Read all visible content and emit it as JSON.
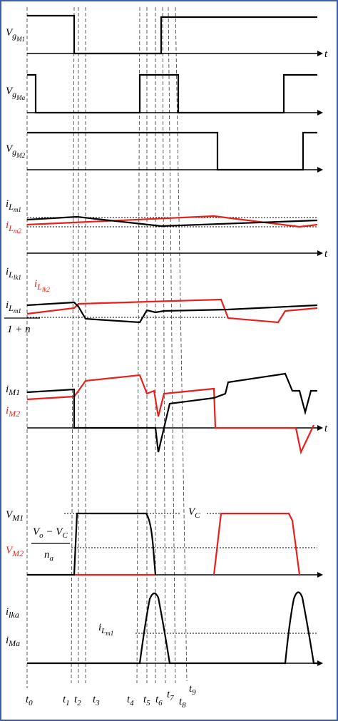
{
  "panels": [
    {
      "labels": [
        {
          "base": "V",
          "sub": "g",
          "sub2": "M1"
        }
      ],
      "axis_label": "t"
    },
    {
      "labels": [
        {
          "base": "V",
          "sub": "g",
          "sub2": "Ma"
        }
      ]
    },
    {
      "labels": [
        {
          "base": "V",
          "sub": "g",
          "sub2": "M2"
        }
      ]
    },
    {
      "labels": [
        {
          "base": "i",
          "sub": "L",
          "sub2": "m1"
        },
        {
          "base": "i",
          "sub": "L",
          "sub2": "m2"
        }
      ],
      "axis_label": "t"
    },
    {
      "labels": [
        {
          "base": "i",
          "sub": "L",
          "sub2": "lk1"
        },
        {
          "base": "i",
          "sub": "L",
          "sub2": "lk2"
        }
      ],
      "fraction": {
        "num": {
          "base": "i",
          "sub": "L",
          "sub2": "m1"
        },
        "den": "1 + n"
      }
    },
    {
      "labels": [
        {
          "base": "i",
          "sub": "M1"
        },
        {
          "base": "i",
          "sub": "M2"
        }
      ],
      "axis_label": "t"
    },
    {
      "labels": [
        {
          "base": "V",
          "sub": "M1"
        },
        {
          "base": "V",
          "sub": "M2"
        }
      ],
      "fraction": {
        "num": {
          "base": "V",
          "sub": "o",
          "mid": " − V",
          "sub2": "C"
        },
        "den": {
          "base": "n",
          "sub": "a"
        }
      },
      "annotation": {
        "base": "V",
        "sub": "C"
      }
    },
    {
      "labels": [
        {
          "base": "i",
          "sub": "lka"
        },
        {
          "base": "i",
          "sub": "Ma"
        }
      ],
      "annotation": {
        "base": "i",
        "sub": "L",
        "sub2": "m1"
      }
    }
  ],
  "time_labels": [
    {
      "base": "t",
      "sub": "0"
    },
    {
      "base": "t",
      "sub": "1"
    },
    {
      "base": "t",
      "sub": "2"
    },
    {
      "base": "t",
      "sub": "3"
    },
    {
      "base": "t",
      "sub": "4"
    },
    {
      "base": "t",
      "sub": "5"
    },
    {
      "base": "t",
      "sub": "6"
    },
    {
      "base": "t",
      "sub": "7"
    },
    {
      "base": "t",
      "sub": "8"
    },
    {
      "base": "t",
      "sub": "9"
    }
  ]
}
